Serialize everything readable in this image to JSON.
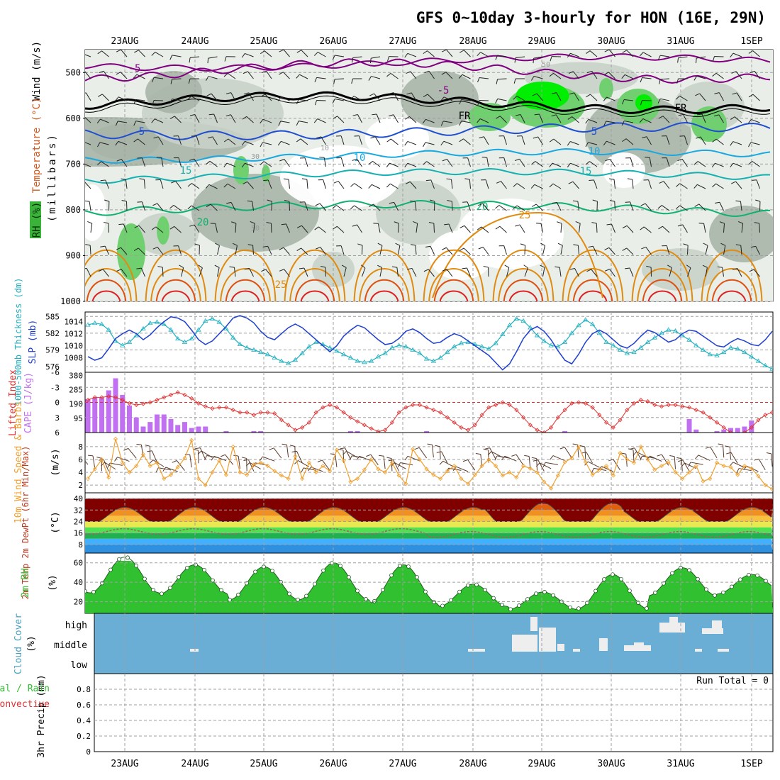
{
  "title": "GFS 0~10day 3-hourly for HON (16E, 29N)",
  "colors": {
    "grid": "#a0a0a0",
    "temp_iso": "#800080",
    "isotherm_blue": "#1f4fd0",
    "isotherm_cyan": "#1aa8e0",
    "isotherm_teal": "#15b0b0",
    "isotherm_green": "#10b070",
    "isotherm_orange": "#e08a10",
    "isotherm_red": "#e02020",
    "rh_dark": "#a9b5a9",
    "rh_mid": "#c9d2c9",
    "rh_light": "#e9eee9",
    "rh_green": "#70d070",
    "rh_bright": "#00ee00",
    "slp": "#1f3fd0",
    "thickness": "#20b0c0",
    "cape": "#c070f0",
    "lifted": "#e03030",
    "wind_speed": "#f0a030",
    "barb": "#5a3a2a",
    "rh2m": "#40c040",
    "cloud": "#6aaed6",
    "cloud_blocks": "#eeeeee"
  },
  "chart_data": [
    {
      "type": "heatmap",
      "name": "upper-air",
      "xlabel_top": [
        "23AUG",
        "24AUG",
        "25AUG",
        "26AUG",
        "27AUG",
        "28AUG",
        "29AUG",
        "30AUG",
        "31AUG",
        "1SEP"
      ],
      "ylabel": "(millibars)",
      "side_labels": [
        "Wind (m/s)",
        "Temperature (°C)",
        "RH (%)"
      ],
      "yticks": [
        500,
        600,
        700,
        800,
        900,
        1000
      ],
      "ylim": [
        450,
        1000
      ],
      "isotherms": [
        {
          "label": "-5",
          "level": "500",
          "color": "temp_iso"
        },
        {
          "label": "FR",
          "level": "580",
          "color": "black"
        },
        {
          "label": "5",
          "level": "620",
          "color": "isotherm_blue"
        },
        {
          "label": "10",
          "level": "670",
          "color": "isotherm_cyan"
        },
        {
          "label": "15",
          "level": "710",
          "color": "isotherm_teal"
        },
        {
          "label": "20",
          "level": "790",
          "color": "isotherm_green"
        },
        {
          "label": "25",
          "level": "880",
          "color": "isotherm_orange"
        }
      ],
      "inline_labels": [
        "-5",
        "-5",
        "FR",
        "FR",
        "5",
        "5",
        "10",
        "10",
        "15",
        "15",
        "20",
        "20",
        "25",
        "25",
        "30",
        "50",
        "50",
        "10"
      ]
    },
    {
      "type": "line",
      "name": "slp-thickness",
      "ylabel_left": "1000-500mb Thickness (dm)",
      "ylabel_right": "SLP (mb)",
      "yticks_thickness": [
        585,
        582,
        579,
        576
      ],
      "yticks_slp": [
        1014,
        1012,
        1010,
        1008
      ],
      "slp": [
        1008.2,
        1007.6,
        1008.0,
        1009.5,
        1011.2,
        1012.0,
        1012.6,
        1012.0,
        1011.0,
        1011.8,
        1013.0,
        1014.0,
        1014.8,
        1014.6,
        1014.0,
        1012.6,
        1011.0,
        1010.2,
        1010.8,
        1012.0,
        1013.2,
        1014.6,
        1015.0,
        1014.6,
        1013.8,
        1012.4,
        1011.4,
        1011.0,
        1012.0,
        1013.0,
        1013.6,
        1013.0,
        1012.0,
        1011.0,
        1010.0,
        1009.0,
        1010.0,
        1011.6,
        1012.6,
        1013.4,
        1013.0,
        1012.0,
        1011.0,
        1010.2,
        1010.4,
        1011.2,
        1012.4,
        1012.8,
        1012.2,
        1011.2,
        1010.4,
        1010.6,
        1011.4,
        1012.0,
        1011.6,
        1010.8,
        1010.0,
        1009.2,
        1008.4,
        1007.2,
        1006.0,
        1007.0,
        1009.0,
        1011.2,
        1012.6,
        1013.2,
        1012.4,
        1011.0,
        1009.2,
        1007.6,
        1007.0,
        1008.6,
        1010.6,
        1012.0,
        1012.6,
        1012.0,
        1011.0,
        1010.0,
        1009.6,
        1010.4,
        1011.6,
        1012.6,
        1012.2,
        1011.4,
        1010.6,
        1011.0,
        1012.0,
        1012.6,
        1012.4,
        1011.6,
        1010.8,
        1010.0,
        1009.8,
        1010.6,
        1011.2,
        1010.8,
        1010.2,
        1010.0,
        1011.0,
        1012.4
      ],
      "thickness": [
        583.5,
        583.8,
        583.6,
        582.6,
        580.6,
        579.8,
        580.4,
        581.6,
        582.8,
        583.8,
        584.0,
        583.6,
        582.6,
        581.0,
        580.4,
        581.0,
        582.6,
        584.2,
        584.6,
        584.0,
        582.8,
        581.2,
        580.0,
        579.4,
        579.0,
        578.6,
        578.2,
        577.6,
        577.0,
        576.6,
        577.2,
        578.4,
        579.6,
        580.4,
        580.0,
        579.4,
        578.8,
        578.2,
        577.6,
        577.0,
        576.8,
        577.0,
        577.8,
        578.4,
        579.4,
        579.8,
        579.6,
        579.0,
        578.4,
        577.4,
        577.0,
        577.6,
        578.6,
        579.6,
        580.2,
        580.4,
        580.0,
        579.6,
        579.2,
        580.2,
        581.8,
        583.4,
        584.6,
        584.2,
        583.0,
        581.6,
        580.6,
        579.8,
        579.6,
        580.4,
        582.0,
        583.4,
        584.4,
        583.6,
        582.0,
        580.4,
        579.8,
        579.0,
        578.4,
        578.6,
        579.4,
        580.4,
        581.2,
        582.0,
        582.6,
        582.4,
        581.6,
        580.8,
        579.8,
        579.0,
        578.2,
        578.0,
        578.6,
        579.4,
        579.2,
        578.6,
        577.8,
        577.0,
        576.2,
        575.6
      ]
    },
    {
      "type": "bar",
      "name": "cape-lifted",
      "ylabel_left": "Lifted Index",
      "ylabel_right": "CAPE (J/kg)",
      "yticks_li": [
        -6,
        -3,
        0,
        3,
        6
      ],
      "yticks_cape": [
        380,
        285,
        190,
        95
      ],
      "cape": [
        220,
        230,
        230,
        280,
        360,
        250,
        180,
        100,
        40,
        70,
        120,
        120,
        90,
        50,
        70,
        30,
        40,
        40,
        0,
        0,
        10,
        0,
        0,
        0,
        10,
        10,
        0,
        0,
        0,
        0,
        0,
        0,
        0,
        0,
        0,
        0,
        0,
        0,
        10,
        10,
        0,
        0,
        0,
        0,
        0,
        0,
        0,
        0,
        0,
        10,
        0,
        0,
        0,
        0,
        0,
        0,
        0,
        0,
        0,
        0,
        0,
        0,
        0,
        0,
        0,
        0,
        0,
        0,
        0,
        10,
        0,
        0,
        0,
        0,
        0,
        0,
        0,
        0,
        0,
        0,
        0,
        0,
        0,
        0,
        0,
        0,
        0,
        90,
        20,
        0,
        0,
        10,
        20,
        30,
        30,
        40,
        80,
        0,
        0,
        0
      ],
      "lifted": [
        -0.5,
        -1.0,
        -1.0,
        -1.2,
        -1.0,
        -0.5,
        0.2,
        0.5,
        0.3,
        0.0,
        -0.5,
        -1.0,
        -1.5,
        -2.0,
        -1.5,
        -0.8,
        0.2,
        0.8,
        1.2,
        1.0,
        1.0,
        1.5,
        2.0,
        2.0,
        2.5,
        2.0,
        2.0,
        2.2,
        3.5,
        4.5,
        5.5,
        5.0,
        4.0,
        2.0,
        1.0,
        0.5,
        1.0,
        2.0,
        3.0,
        3.8,
        4.5,
        5.2,
        5.8,
        5.5,
        4.0,
        2.0,
        1.0,
        0.5,
        0.5,
        1.0,
        1.5,
        2.0,
        3.0,
        4.0,
        5.0,
        5.5,
        4.5,
        2.5,
        1.0,
        0.5,
        0.0,
        0.5,
        1.5,
        3.0,
        4.5,
        5.5,
        6.0,
        5.0,
        3.0,
        1.5,
        0.2,
        0.0,
        0.2,
        1.0,
        2.5,
        4.0,
        5.0,
        3.5,
        1.5,
        0.2,
        -0.5,
        -0.2,
        0.5,
        0.8,
        0.5,
        0.5,
        0.8,
        1.0,
        1.5,
        2.0,
        3.0,
        4.0,
        5.0,
        6.0,
        6.5,
        6.0,
        5.0,
        3.5,
        2.5,
        2.0
      ]
    },
    {
      "type": "line",
      "name": "wind10m",
      "ylabel_left": "10m Wind Speed & Barbs",
      "ylabel_unit": "(m/s)",
      "yticks": [
        2,
        4,
        6,
        8
      ],
      "speed": [
        3.0,
        4.5,
        6.0,
        3.2,
        9.2,
        5.5,
        4.0,
        5.0,
        6.8,
        5.0,
        5.5,
        3.0,
        3.6,
        4.8,
        6.2,
        9.0,
        3.0,
        2.0,
        4.0,
        5.8,
        3.6,
        8.0,
        4.0,
        3.6,
        5.2,
        5.5,
        5.0,
        4.2,
        3.5,
        3.0,
        6.5,
        3.0,
        5.5,
        4.0,
        5.0,
        4.2,
        7.5,
        5.8,
        2.5,
        3.0,
        4.4,
        6.0,
        4.5,
        4.0,
        5.5,
        3.5,
        2.2,
        7.6,
        6.0,
        4.5,
        3.6,
        3.0,
        4.2,
        5.0,
        3.0,
        2.2,
        3.6,
        5.0,
        6.0,
        5.0,
        3.5,
        4.0,
        3.2,
        5.0,
        4.6,
        4.0,
        2.5,
        1.5,
        3.5,
        5.6,
        6.2,
        8.0,
        5.6,
        3.6,
        4.4,
        5.0,
        3.5,
        7.0,
        6.0,
        5.5,
        8.0,
        6.0,
        4.4,
        5.0,
        5.6,
        4.0,
        3.0,
        4.0,
        5.0,
        2.6,
        3.0,
        5.5,
        5.0,
        4.8,
        3.6,
        5.0,
        4.6,
        3.4,
        2.0,
        1.4
      ]
    },
    {
      "type": "area",
      "name": "temp2m",
      "ylabel_left": "2m Temp 2m DewPt (6hr Min/Max)",
      "ylabel_unit": "(°C)",
      "yticks": [
        8,
        16,
        24,
        32,
        40
      ]
    },
    {
      "type": "area",
      "name": "rh2m",
      "ylabel_left": "2m RH",
      "ylabel_unit": "(%)",
      "yticks": [
        20,
        40,
        60
      ]
    },
    {
      "type": "heatmap",
      "name": "cloud",
      "ylabel_left": "Cloud Cover",
      "ylabel_unit": "(%)",
      "levels": [
        "high",
        "middle",
        "low"
      ]
    },
    {
      "type": "bar",
      "name": "precip",
      "ylabel_left": "3hr Precip (mm)",
      "series_labels": [
        "Total / Rain",
        "Convective"
      ],
      "yticks": [
        0,
        0.2,
        0.4,
        0.6,
        0.8
      ],
      "ylim": [
        0,
        1
      ],
      "run_total": "Run Total = 0",
      "xlabel_bottom": [
        "23AUG",
        "24AUG",
        "25AUG",
        "26AUG",
        "27AUG",
        "28AUG",
        "29AUG",
        "30AUG",
        "31AUG",
        "1SEP"
      ]
    }
  ]
}
